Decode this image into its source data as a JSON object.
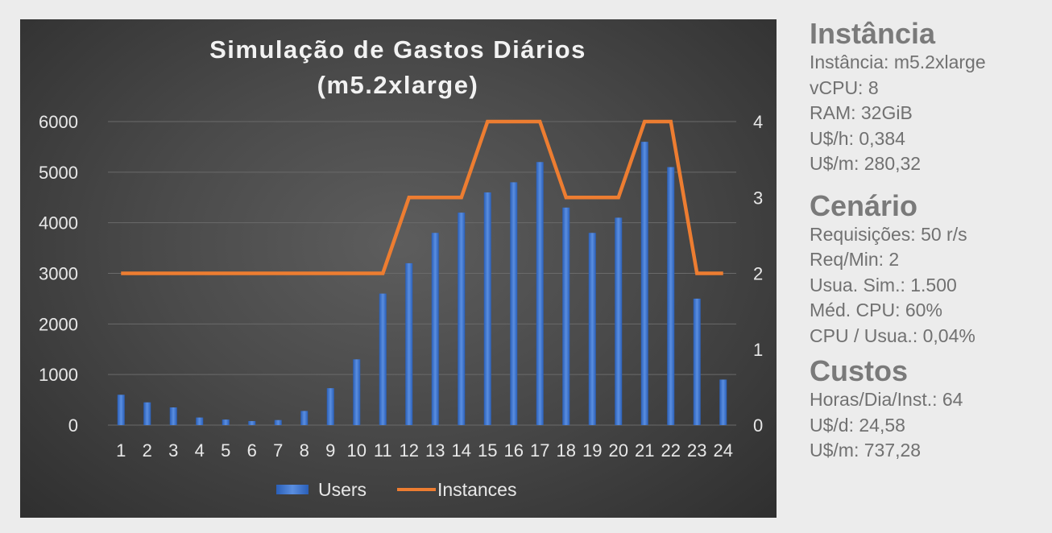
{
  "chart_data": {
    "type": "bar+line",
    "title": [
      "Simulação de Gastos Diários",
      "(m5.2xlarge)"
    ],
    "categories": [
      "1",
      "2",
      "3",
      "4",
      "5",
      "6",
      "7",
      "8",
      "9",
      "10",
      "11",
      "12",
      "13",
      "14",
      "15",
      "16",
      "17",
      "18",
      "19",
      "20",
      "21",
      "22",
      "23",
      "24"
    ],
    "series": [
      {
        "name": "Users",
        "type": "bar",
        "axis": "left",
        "color": "#4472c4",
        "values": [
          600,
          450,
          350,
          150,
          110,
          80,
          100,
          280,
          730,
          1300,
          2600,
          3200,
          3800,
          4200,
          4600,
          4800,
          5200,
          4300,
          3800,
          4100,
          5600,
          5100,
          2500,
          900
        ]
      },
      {
        "name": "Instances",
        "type": "line",
        "axis": "right",
        "color": "#ed7d31",
        "values": [
          2,
          2,
          2,
          2,
          2,
          2,
          2,
          2,
          2,
          2,
          2,
          3,
          3,
          3,
          4,
          4,
          4,
          3,
          3,
          3,
          4,
          4,
          2,
          2
        ]
      }
    ],
    "y_left": {
      "min": 0,
      "max": 6000,
      "ticks": [
        "0",
        "1000",
        "2000",
        "3000",
        "4000",
        "5000",
        "6000"
      ]
    },
    "y_right": {
      "min": 0,
      "max": 4,
      "ticks": [
        "0",
        "1",
        "2",
        "3",
        "4"
      ]
    },
    "grid": true,
    "legend": "bottom"
  },
  "info": {
    "instancia": {
      "title": "Instância",
      "lines": [
        "Instância: m5.2xlarge",
        "vCPU: 8",
        "RAM: 32GiB",
        "U$/h: 0,384",
        "U$/m: 280,32"
      ]
    },
    "cenario": {
      "title": "Cenário",
      "lines": [
        "Requisições: 50 r/s",
        "Req/Min: 2",
        "Usua. Sim.: 1.500",
        "Méd. CPU: 60%",
        "CPU / Usua.: 0,04%"
      ]
    },
    "custos": {
      "title": "Custos",
      "lines": [
        "Horas/Dia/Inst.: 64",
        "U$/d: 24,58",
        "U$/m: 737,28"
      ]
    }
  }
}
